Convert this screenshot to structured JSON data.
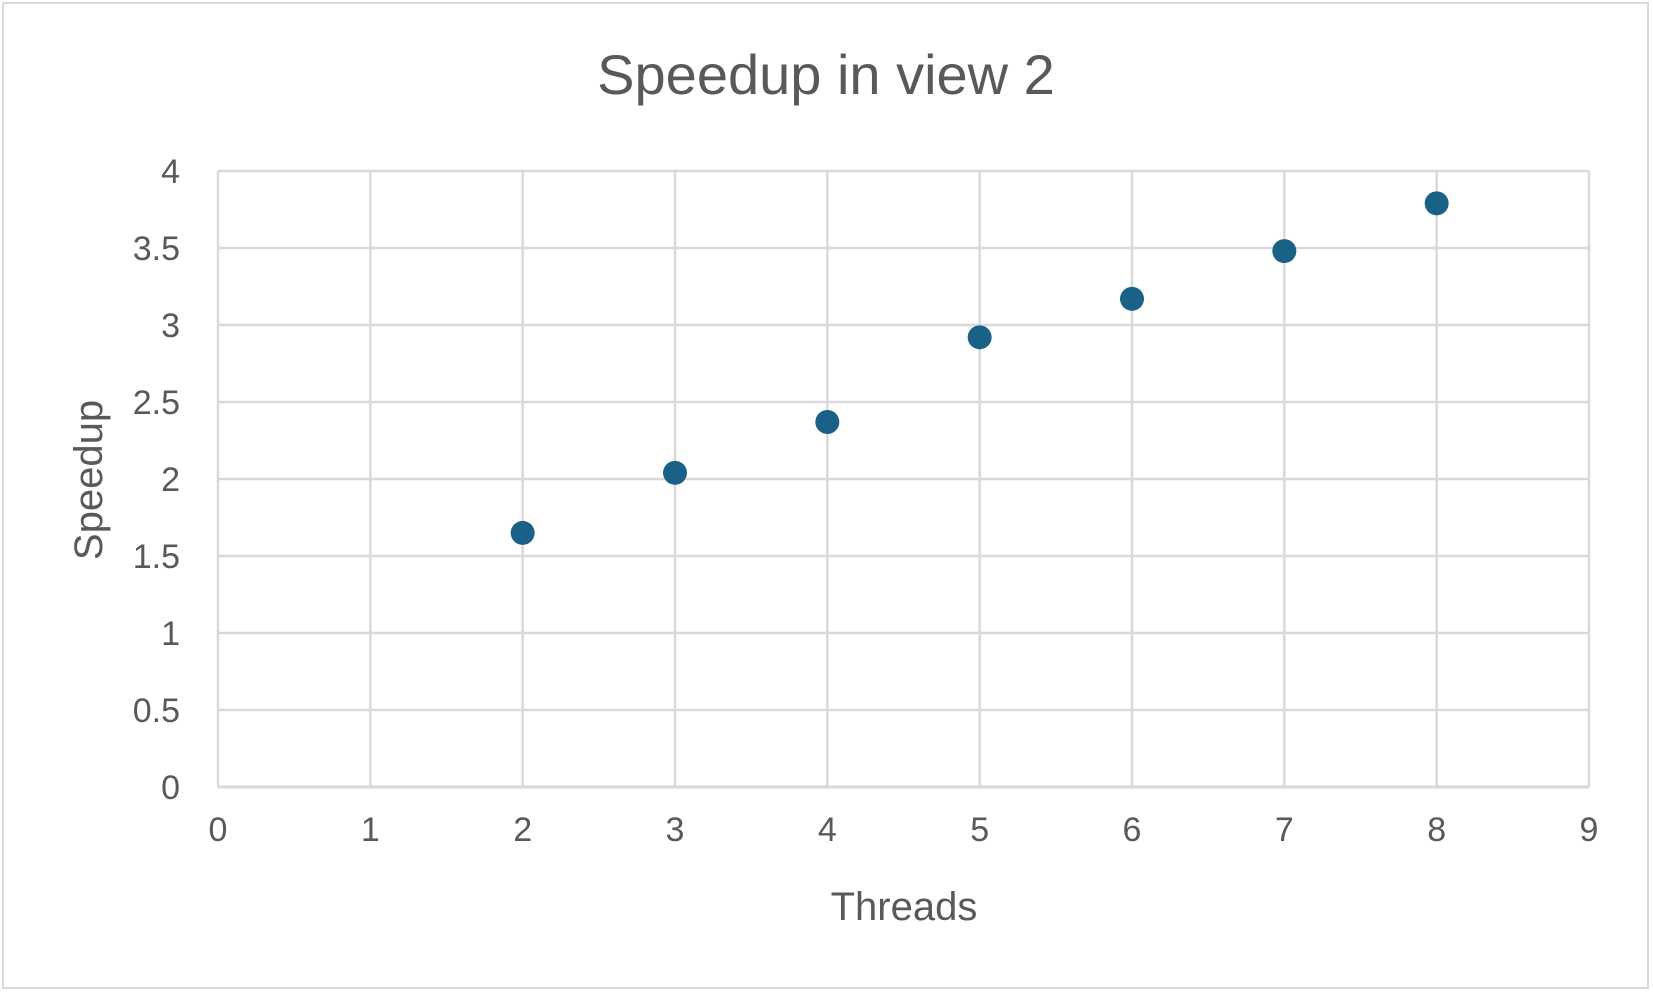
{
  "chart_data": {
    "type": "scatter",
    "title": "Speedup in view 2",
    "xlabel": "Threads",
    "ylabel": "Speedup",
    "xlim": [
      0,
      9
    ],
    "ylim": [
      0,
      4
    ],
    "x_ticks": [
      "0",
      "1",
      "2",
      "3",
      "4",
      "5",
      "6",
      "7",
      "8",
      "9"
    ],
    "y_ticks": [
      "0",
      "0.5",
      "1",
      "1.5",
      "2",
      "2.5",
      "3",
      "3.5",
      "4"
    ],
    "grid": true,
    "legend": "none",
    "marker_color": "#1a6187",
    "series": [
      {
        "x": [
          2,
          3,
          4,
          5,
          6,
          7,
          8
        ],
        "y": [
          1.65,
          2.04,
          2.37,
          2.92,
          3.17,
          3.48,
          3.79
        ]
      }
    ]
  }
}
